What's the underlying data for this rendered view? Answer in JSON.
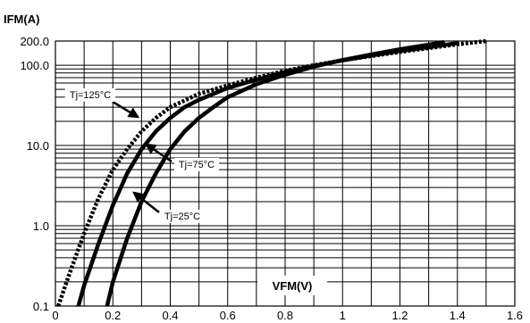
{
  "chart_data": {
    "type": "line",
    "title": "",
    "ylabel": "IFM(A)",
    "xlabel": "VFM(V)",
    "xlim": [
      0,
      1.6
    ],
    "ylim": [
      0.1,
      200
    ],
    "y_scale": "log",
    "grid": true,
    "x_ticks": [
      "0",
      "0.2",
      "0.4",
      "0.6",
      "0.8",
      "1",
      "1.2",
      "1.4",
      "1.6"
    ],
    "y_ticks": [
      "0.1",
      "1.0",
      "10.0",
      "100.0",
      "200.0"
    ],
    "series": [
      {
        "name": "Tj=125°C",
        "style": "dotted",
        "points": [
          [
            0.01,
            0.1
          ],
          [
            0.05,
            0.26
          ],
          [
            0.1,
            0.8
          ],
          [
            0.15,
            2.2
          ],
          [
            0.2,
            5.0
          ],
          [
            0.25,
            9.0
          ],
          [
            0.3,
            15
          ],
          [
            0.35,
            22
          ],
          [
            0.4,
            30
          ],
          [
            0.5,
            44
          ],
          [
            0.6,
            56
          ],
          [
            0.7,
            70
          ],
          [
            0.8,
            85
          ],
          [
            0.9,
            100
          ],
          [
            1.0,
            115
          ],
          [
            1.1,
            130
          ],
          [
            1.2,
            146
          ],
          [
            1.3,
            163
          ],
          [
            1.4,
            182
          ],
          [
            1.5,
            200
          ]
        ]
      },
      {
        "name": "Tj=75°C",
        "style": "solid",
        "points": [
          [
            0.08,
            0.1
          ],
          [
            0.1,
            0.18
          ],
          [
            0.15,
            0.6
          ],
          [
            0.2,
            1.8
          ],
          [
            0.25,
            4.5
          ],
          [
            0.3,
            9.0
          ],
          [
            0.35,
            15
          ],
          [
            0.4,
            22
          ],
          [
            0.45,
            30
          ],
          [
            0.5,
            37
          ],
          [
            0.6,
            52
          ],
          [
            0.7,
            66
          ],
          [
            0.8,
            82
          ],
          [
            0.9,
            98
          ],
          [
            1.0,
            115
          ],
          [
            1.1,
            132
          ],
          [
            1.2,
            150
          ],
          [
            1.3,
            168
          ],
          [
            1.4,
            188
          ]
        ]
      },
      {
        "name": "Tj=25°C",
        "style": "solid",
        "points": [
          [
            0.18,
            0.1
          ],
          [
            0.2,
            0.2
          ],
          [
            0.25,
            0.7
          ],
          [
            0.3,
            2.0
          ],
          [
            0.35,
            4.5
          ],
          [
            0.4,
            9.0
          ],
          [
            0.45,
            15
          ],
          [
            0.5,
            22
          ],
          [
            0.55,
            30
          ],
          [
            0.6,
            40
          ],
          [
            0.7,
            58
          ],
          [
            0.8,
            76
          ],
          [
            0.9,
            96
          ],
          [
            1.0,
            116
          ],
          [
            1.1,
            136
          ],
          [
            1.2,
            158
          ],
          [
            1.3,
            180
          ],
          [
            1.35,
            193
          ]
        ]
      }
    ]
  }
}
